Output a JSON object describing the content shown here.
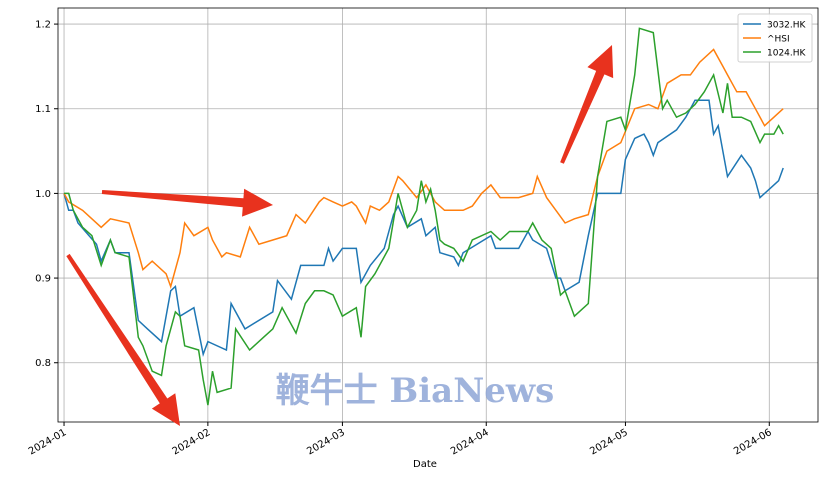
{
  "chart_data": {
    "type": "line",
    "watermark": "鞭牛士 BiaNews",
    "xlabel": "Date",
    "xlim": [
      -1.3,
      162.5
    ],
    "ylim": [
      0.73,
      1.219
    ],
    "xticks": [
      {
        "value": 0,
        "label": "2024-01"
      },
      {
        "value": 31,
        "label": "2024-02"
      },
      {
        "value": 60,
        "label": "2024-03"
      },
      {
        "value": 91,
        "label": "2024-04"
      },
      {
        "value": 121,
        "label": "2024-05"
      },
      {
        "value": 152,
        "label": "2024-06"
      }
    ],
    "yticks": [
      0.8,
      0.9,
      {
        "value": 1,
        "label": "1.0"
      },
      1.1,
      1.2
    ],
    "grid": true,
    "legend": "upper right",
    "series": [
      {
        "name": "3032.HK",
        "color": "#1f77b4",
        "x": [
          0,
          1,
          2,
          3,
          7,
          8,
          10,
          11,
          14,
          16,
          18,
          21,
          23,
          24,
          25,
          28,
          30,
          31,
          35,
          36,
          39,
          45,
          46,
          49,
          51,
          56,
          57,
          58,
          60,
          63,
          64,
          66,
          69,
          71,
          72,
          74,
          77,
          78,
          80,
          81,
          84,
          85,
          86,
          92,
          93,
          98,
          100,
          101,
          104,
          106,
          107,
          108,
          111,
          113,
          115,
          120,
          121,
          123,
          125,
          126,
          127,
          128,
          132,
          134,
          136,
          139,
          140,
          141,
          143,
          146,
          148,
          149,
          150,
          152,
          154,
          155
        ],
        "values": [
          1.0,
          0.98,
          0.98,
          0.965,
          0.94,
          0.92,
          0.945,
          0.93,
          0.93,
          0.85,
          0.84,
          0.825,
          0.885,
          0.89,
          0.855,
          0.865,
          0.81,
          0.825,
          0.815,
          0.87,
          0.84,
          0.86,
          0.897,
          0.875,
          0.915,
          0.915,
          0.935,
          0.92,
          0.935,
          0.935,
          0.895,
          0.915,
          0.935,
          0.975,
          0.985,
          0.96,
          0.97,
          0.95,
          0.96,
          0.93,
          0.925,
          0.915,
          0.93,
          0.95,
          0.935,
          0.935,
          0.955,
          0.945,
          0.935,
          0.9,
          0.9,
          0.885,
          0.895,
          0.95,
          1.0,
          1.0,
          1.04,
          1.065,
          1.07,
          1.06,
          1.045,
          1.06,
          1.075,
          1.09,
          1.11,
          1.11,
          1.07,
          1.08,
          1.02,
          1.045,
          1.03,
          1.015,
          0.995,
          1.005,
          1.015,
          1.03
        ]
      },
      {
        "name": "^HSI",
        "color": "#ff7f0e",
        "x": [
          0,
          1,
          4,
          8,
          10,
          14,
          16,
          17,
          19,
          22,
          23,
          25,
          26,
          28,
          31,
          32,
          34,
          35,
          38,
          40,
          42,
          45,
          48,
          50,
          52,
          55,
          56,
          58,
          60,
          62,
          63,
          65,
          66,
          68,
          70,
          72,
          73,
          76,
          78,
          80,
          82,
          84,
          86,
          88,
          90,
          92,
          94,
          98,
          101,
          102,
          104,
          106,
          108,
          110,
          113,
          115,
          117,
          120,
          123,
          126,
          128,
          130,
          133,
          135,
          137,
          140,
          142,
          143,
          145,
          147,
          149,
          151,
          153,
          155
        ],
        "values": [
          1.0,
          0.99,
          0.98,
          0.96,
          0.97,
          0.965,
          0.93,
          0.91,
          0.92,
          0.905,
          0.89,
          0.93,
          0.965,
          0.95,
          0.96,
          0.945,
          0.925,
          0.93,
          0.925,
          0.96,
          0.94,
          0.945,
          0.95,
          0.975,
          0.965,
          0.99,
          0.995,
          0.99,
          0.985,
          0.99,
          0.985,
          0.965,
          0.985,
          0.98,
          0.99,
          1.02,
          1.015,
          0.995,
          1.01,
          0.99,
          0.98,
          0.98,
          0.98,
          0.985,
          1.0,
          1.01,
          0.995,
          0.995,
          1.0,
          1.02,
          0.995,
          0.98,
          0.965,
          0.97,
          0.975,
          1.02,
          1.05,
          1.06,
          1.1,
          1.105,
          1.1,
          1.13,
          1.14,
          1.14,
          1.155,
          1.17,
          1.15,
          1.14,
          1.12,
          1.12,
          1.1,
          1.08,
          1.09,
          1.1
        ]
      },
      {
        "name": "1024.HK",
        "color": "#2ca02c",
        "x": [
          0,
          1,
          2,
          4,
          6,
          8,
          10,
          11,
          14,
          16,
          17,
          19,
          21,
          22,
          24,
          25,
          26,
          29,
          30,
          31,
          32,
          33,
          36,
          37,
          40,
          43,
          45,
          47,
          50,
          52,
          54,
          56,
          58,
          60,
          63,
          64,
          65,
          67,
          70,
          72,
          74,
          76,
          77,
          78,
          79,
          80,
          81,
          82,
          84,
          86,
          88,
          92,
          94,
          96,
          100,
          101,
          103,
          105,
          107,
          108,
          110,
          113,
          115,
          117,
          120,
          121,
          123,
          124,
          127,
          129,
          130,
          132,
          134,
          136,
          138,
          140,
          142,
          143,
          144,
          146,
          148,
          150,
          151,
          153,
          154,
          155
        ],
        "values": [
          1.0,
          1.0,
          0.98,
          0.96,
          0.95,
          0.915,
          0.945,
          0.93,
          0.925,
          0.83,
          0.82,
          0.79,
          0.785,
          0.82,
          0.86,
          0.855,
          0.82,
          0.815,
          0.78,
          0.75,
          0.79,
          0.765,
          0.77,
          0.84,
          0.815,
          0.83,
          0.84,
          0.865,
          0.835,
          0.87,
          0.885,
          0.885,
          0.88,
          0.855,
          0.865,
          0.83,
          0.89,
          0.905,
          0.935,
          1.0,
          0.96,
          0.98,
          1.015,
          0.99,
          1.005,
          0.98,
          0.945,
          0.94,
          0.935,
          0.92,
          0.945,
          0.955,
          0.945,
          0.955,
          0.955,
          0.965,
          0.945,
          0.935,
          0.88,
          0.885,
          0.855,
          0.87,
          1.02,
          1.085,
          1.09,
          1.075,
          1.14,
          1.195,
          1.19,
          1.1,
          1.11,
          1.09,
          1.095,
          1.105,
          1.12,
          1.14,
          1.095,
          1.13,
          1.09,
          1.09,
          1.085,
          1.06,
          1.07,
          1.07,
          1.08,
          1.07
        ]
      }
    ]
  }
}
